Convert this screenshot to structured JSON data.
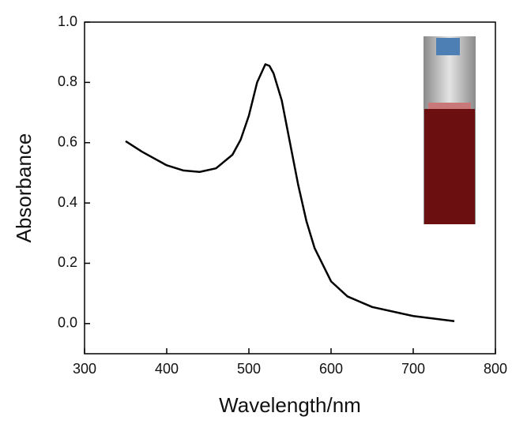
{
  "chart_data": {
    "type": "line",
    "x_label": "Wavelength/nm",
    "y_label": "Absorbance",
    "x": [
      350,
      370,
      400,
      420,
      440,
      460,
      480,
      490,
      500,
      510,
      520,
      525,
      530,
      540,
      550,
      560,
      570,
      580,
      600,
      620,
      650,
      700,
      750
    ],
    "series": [
      {
        "color": "#000000",
        "values": [
          0.605,
          0.57,
          0.525,
          0.508,
          0.503,
          0.515,
          0.56,
          0.61,
          0.69,
          0.8,
          0.86,
          0.855,
          0.83,
          0.74,
          0.6,
          0.46,
          0.34,
          0.25,
          0.14,
          0.09,
          0.055,
          0.025,
          0.008
        ]
      }
    ],
    "xlim": [
      300,
      800
    ],
    "xticks": [
      300,
      400,
      500,
      600,
      700,
      800
    ],
    "ylim": [
      -0.1,
      1.0
    ],
    "yticks": [
      {
        "value": 0,
        "label": "0.0"
      },
      0.2,
      0.4,
      0.6,
      0.8,
      {
        "value": 1,
        "label": "1.0"
      }
    ]
  }
}
